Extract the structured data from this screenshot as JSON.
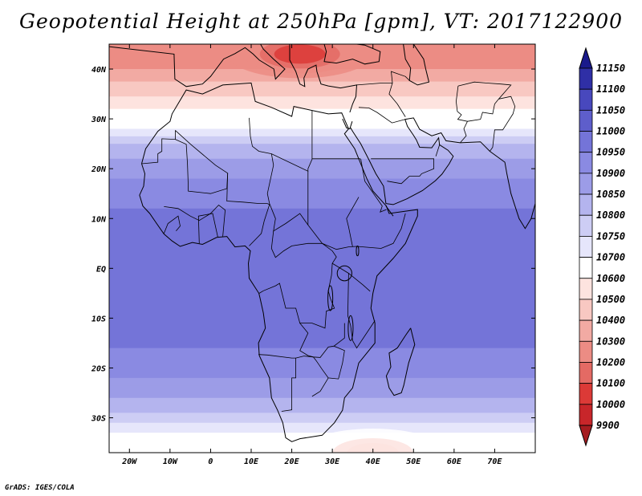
{
  "title": "Geopotential Height at 250hPa [gpm], VT: 2017122900",
  "credit": "GrADS: IGES/COLA",
  "chart_data": {
    "type": "heatmap",
    "variable": "Geopotential Height at 250hPa",
    "units": "gpm",
    "valid_time": "2017122900",
    "lon_range": [
      -25,
      80
    ],
    "lat_range": [
      -37,
      45
    ],
    "x_ticks": [
      "20W",
      "10W",
      "0",
      "10E",
      "20E",
      "30E",
      "40E",
      "50E",
      "60E",
      "70E"
    ],
    "y_ticks": [
      "40N",
      "30N",
      "20N",
      "10N",
      "EQ",
      "10S",
      "20S",
      "30S"
    ],
    "colorbar": {
      "levels": [
        9900,
        10000,
        10100,
        10200,
        10300,
        10400,
        10500,
        10600,
        10700,
        10750,
        10800,
        10850,
        10900,
        10950,
        11000,
        11050,
        11100,
        11150
      ],
      "colors": [
        "#a51c20",
        "#c8262a",
        "#dc3a37",
        "#e46a64",
        "#ec8c84",
        "#f2aaa3",
        "#f8c8c2",
        "#fde3df",
        "#ffffff",
        "#e6e6fb",
        "#cdcdf4",
        "#b4b4ee",
        "#9c9ce7",
        "#8a8ae2",
        "#7474d8",
        "#5e5ecb",
        "#4848bd",
        "#2f2fa6",
        "#1a1a8c"
      ]
    },
    "field_bands": [
      {
        "lat": 45,
        "value": 10200
      },
      {
        "lat": 40,
        "value": 10300
      },
      {
        "lat": 36,
        "value": 10450
      },
      {
        "lat": 32,
        "value": 10600
      },
      {
        "lat": 28,
        "value": 10700
      },
      {
        "lat": 25,
        "value": 10800
      },
      {
        "lat": 22,
        "value": 10850
      },
      {
        "lat": 18,
        "value": 10900
      },
      {
        "lat": 12,
        "value": 10950
      },
      {
        "lat": 0,
        "value": 10975
      },
      {
        "lat": -12,
        "value": 10970
      },
      {
        "lat": -18,
        "value": 10940
      },
      {
        "lat": -22,
        "value": 10900
      },
      {
        "lat": -26,
        "value": 10850
      },
      {
        "lat": -29,
        "value": 10800
      },
      {
        "lat": -31,
        "value": 10750
      },
      {
        "lat": -33,
        "value": 10700
      },
      {
        "lat": -35,
        "value": 10650
      },
      {
        "lat": -37,
        "value": 10600
      }
    ],
    "features": [
      {
        "name": "trough-over-mediterranean",
        "lon": 22,
        "lat": 43,
        "value": 10050
      },
      {
        "name": "low-over-southern-ocean",
        "lon": 40,
        "lat": -37,
        "value": 10550
      }
    ]
  }
}
